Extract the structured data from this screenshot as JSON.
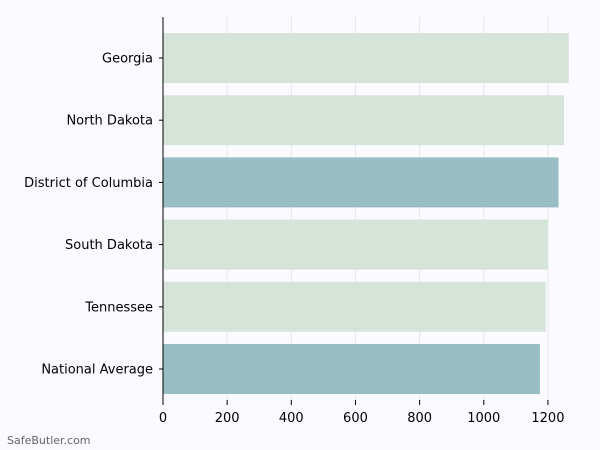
{
  "chart_data": {
    "type": "bar",
    "orientation": "horizontal",
    "categories": [
      "Georgia",
      "North Dakota",
      "District of Columbia",
      "South Dakota",
      "Tennessee",
      "National Average"
    ],
    "values": [
      1265,
      1250,
      1233,
      1200,
      1193,
      1175
    ],
    "highlight": [
      false,
      false,
      true,
      false,
      false,
      true
    ],
    "xlim": [
      0,
      1300
    ],
    "xticks": [
      0,
      200,
      400,
      600,
      800,
      1000,
      1200
    ],
    "grid": true,
    "colors": {
      "default": "#d5e3d8",
      "highlight": "#98bdc5",
      "grid": "#e6e6ea",
      "axis": "#000000"
    },
    "title": "",
    "xlabel": "",
    "ylabel": ""
  },
  "footer": {
    "watermark": "SafeButler.com"
  }
}
